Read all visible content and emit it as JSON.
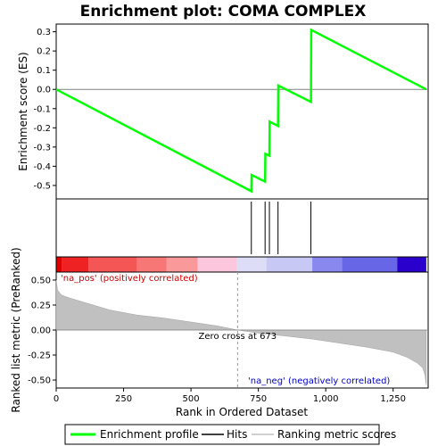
{
  "chart_data": {
    "type": "line",
    "title": "Enrichment plot: COMA COMPLEX",
    "xlabel": "Rank in Ordered Dataset",
    "ylabel_top": "Enrichment score (ES)",
    "ylabel_bottom": "Ranked list metric (PreRanked)",
    "xlim": [
      0,
      1380
    ],
    "x_ticks": [
      0,
      250,
      500,
      750,
      1000,
      1250
    ],
    "x_tick_labels": [
      "0",
      "250",
      "500",
      "750",
      "1,000",
      "1,250"
    ],
    "es_ylim": [
      -0.57,
      0.34
    ],
    "es_ticks": [
      0.3,
      0.2,
      0.1,
      0.0,
      -0.1,
      -0.2,
      -0.3,
      -0.4,
      -0.5
    ],
    "es_tick_labels": [
      "0.3",
      "0.2",
      "0.1",
      "0.0",
      "-0.1",
      "-0.2",
      "-0.3",
      "-0.4",
      "-0.5"
    ],
    "metric_ylim": [
      -0.58,
      0.58
    ],
    "metric_ticks": [
      0.5,
      0.25,
      0.0,
      -0.25,
      -0.5
    ],
    "metric_tick_labels": [
      "0.50",
      "0.25",
      "0.00",
      "-0.25",
      "-0.50"
    ],
    "series": [
      {
        "name": "Enrichment profile",
        "color": "#00ff00",
        "x": [
          0,
          724,
          725,
          775,
          776,
          791,
          792,
          823,
          824,
          945,
          946,
          1373
        ],
        "y": [
          0.0,
          -0.53,
          -0.445,
          -0.48,
          -0.335,
          -0.345,
          -0.168,
          -0.19,
          0.02,
          -0.065,
          0.31,
          0.0
        ]
      }
    ],
    "hits": [
      724,
      775,
      791,
      823,
      945
    ],
    "metric": {
      "x": [
        0,
        5,
        20,
        50,
        100,
        200,
        300,
        400,
        500,
        600,
        673,
        750,
        850,
        950,
        1050,
        1150,
        1250,
        1300,
        1340,
        1360,
        1368,
        1373
      ],
      "y": [
        0.5,
        0.4,
        0.35,
        0.32,
        0.28,
        0.2,
        0.15,
        0.12,
        0.08,
        0.04,
        0.0,
        -0.03,
        -0.06,
        -0.09,
        -0.13,
        -0.17,
        -0.22,
        -0.27,
        -0.33,
        -0.38,
        -0.45,
        -0.55
      ]
    },
    "color_bar": [
      {
        "from": 0,
        "to": 20,
        "color": "#dd0000"
      },
      {
        "from": 20,
        "to": 120,
        "color": "#ee2222"
      },
      {
        "from": 120,
        "to": 300,
        "color": "#f45555"
      },
      {
        "from": 300,
        "to": 410,
        "color": "#f77777"
      },
      {
        "from": 410,
        "to": 525,
        "color": "#fa9999"
      },
      {
        "from": 525,
        "to": 670,
        "color": "#fcc6dd"
      },
      {
        "from": 670,
        "to": 780,
        "color": "#ddddf7"
      },
      {
        "from": 780,
        "to": 950,
        "color": "#c8c8f4"
      },
      {
        "from": 950,
        "to": 1060,
        "color": "#8888ee"
      },
      {
        "from": 1060,
        "to": 1265,
        "color": "#6666e6"
      },
      {
        "from": 1265,
        "to": 1373,
        "color": "#2a00cc"
      }
    ],
    "zero_cross": 673,
    "annotations": {
      "pos_label": "'na_pos' (positively correlated)",
      "neg_label": "'na_neg' (negatively correlated)",
      "zero_cross_label": "Zero cross at 673",
      "pos_color": "#cc0000",
      "neg_color": "#0000cc"
    },
    "legend": {
      "placement": "bottom",
      "entries": [
        "Enrichment profile",
        "Hits",
        "Ranking metric scores"
      ]
    }
  }
}
